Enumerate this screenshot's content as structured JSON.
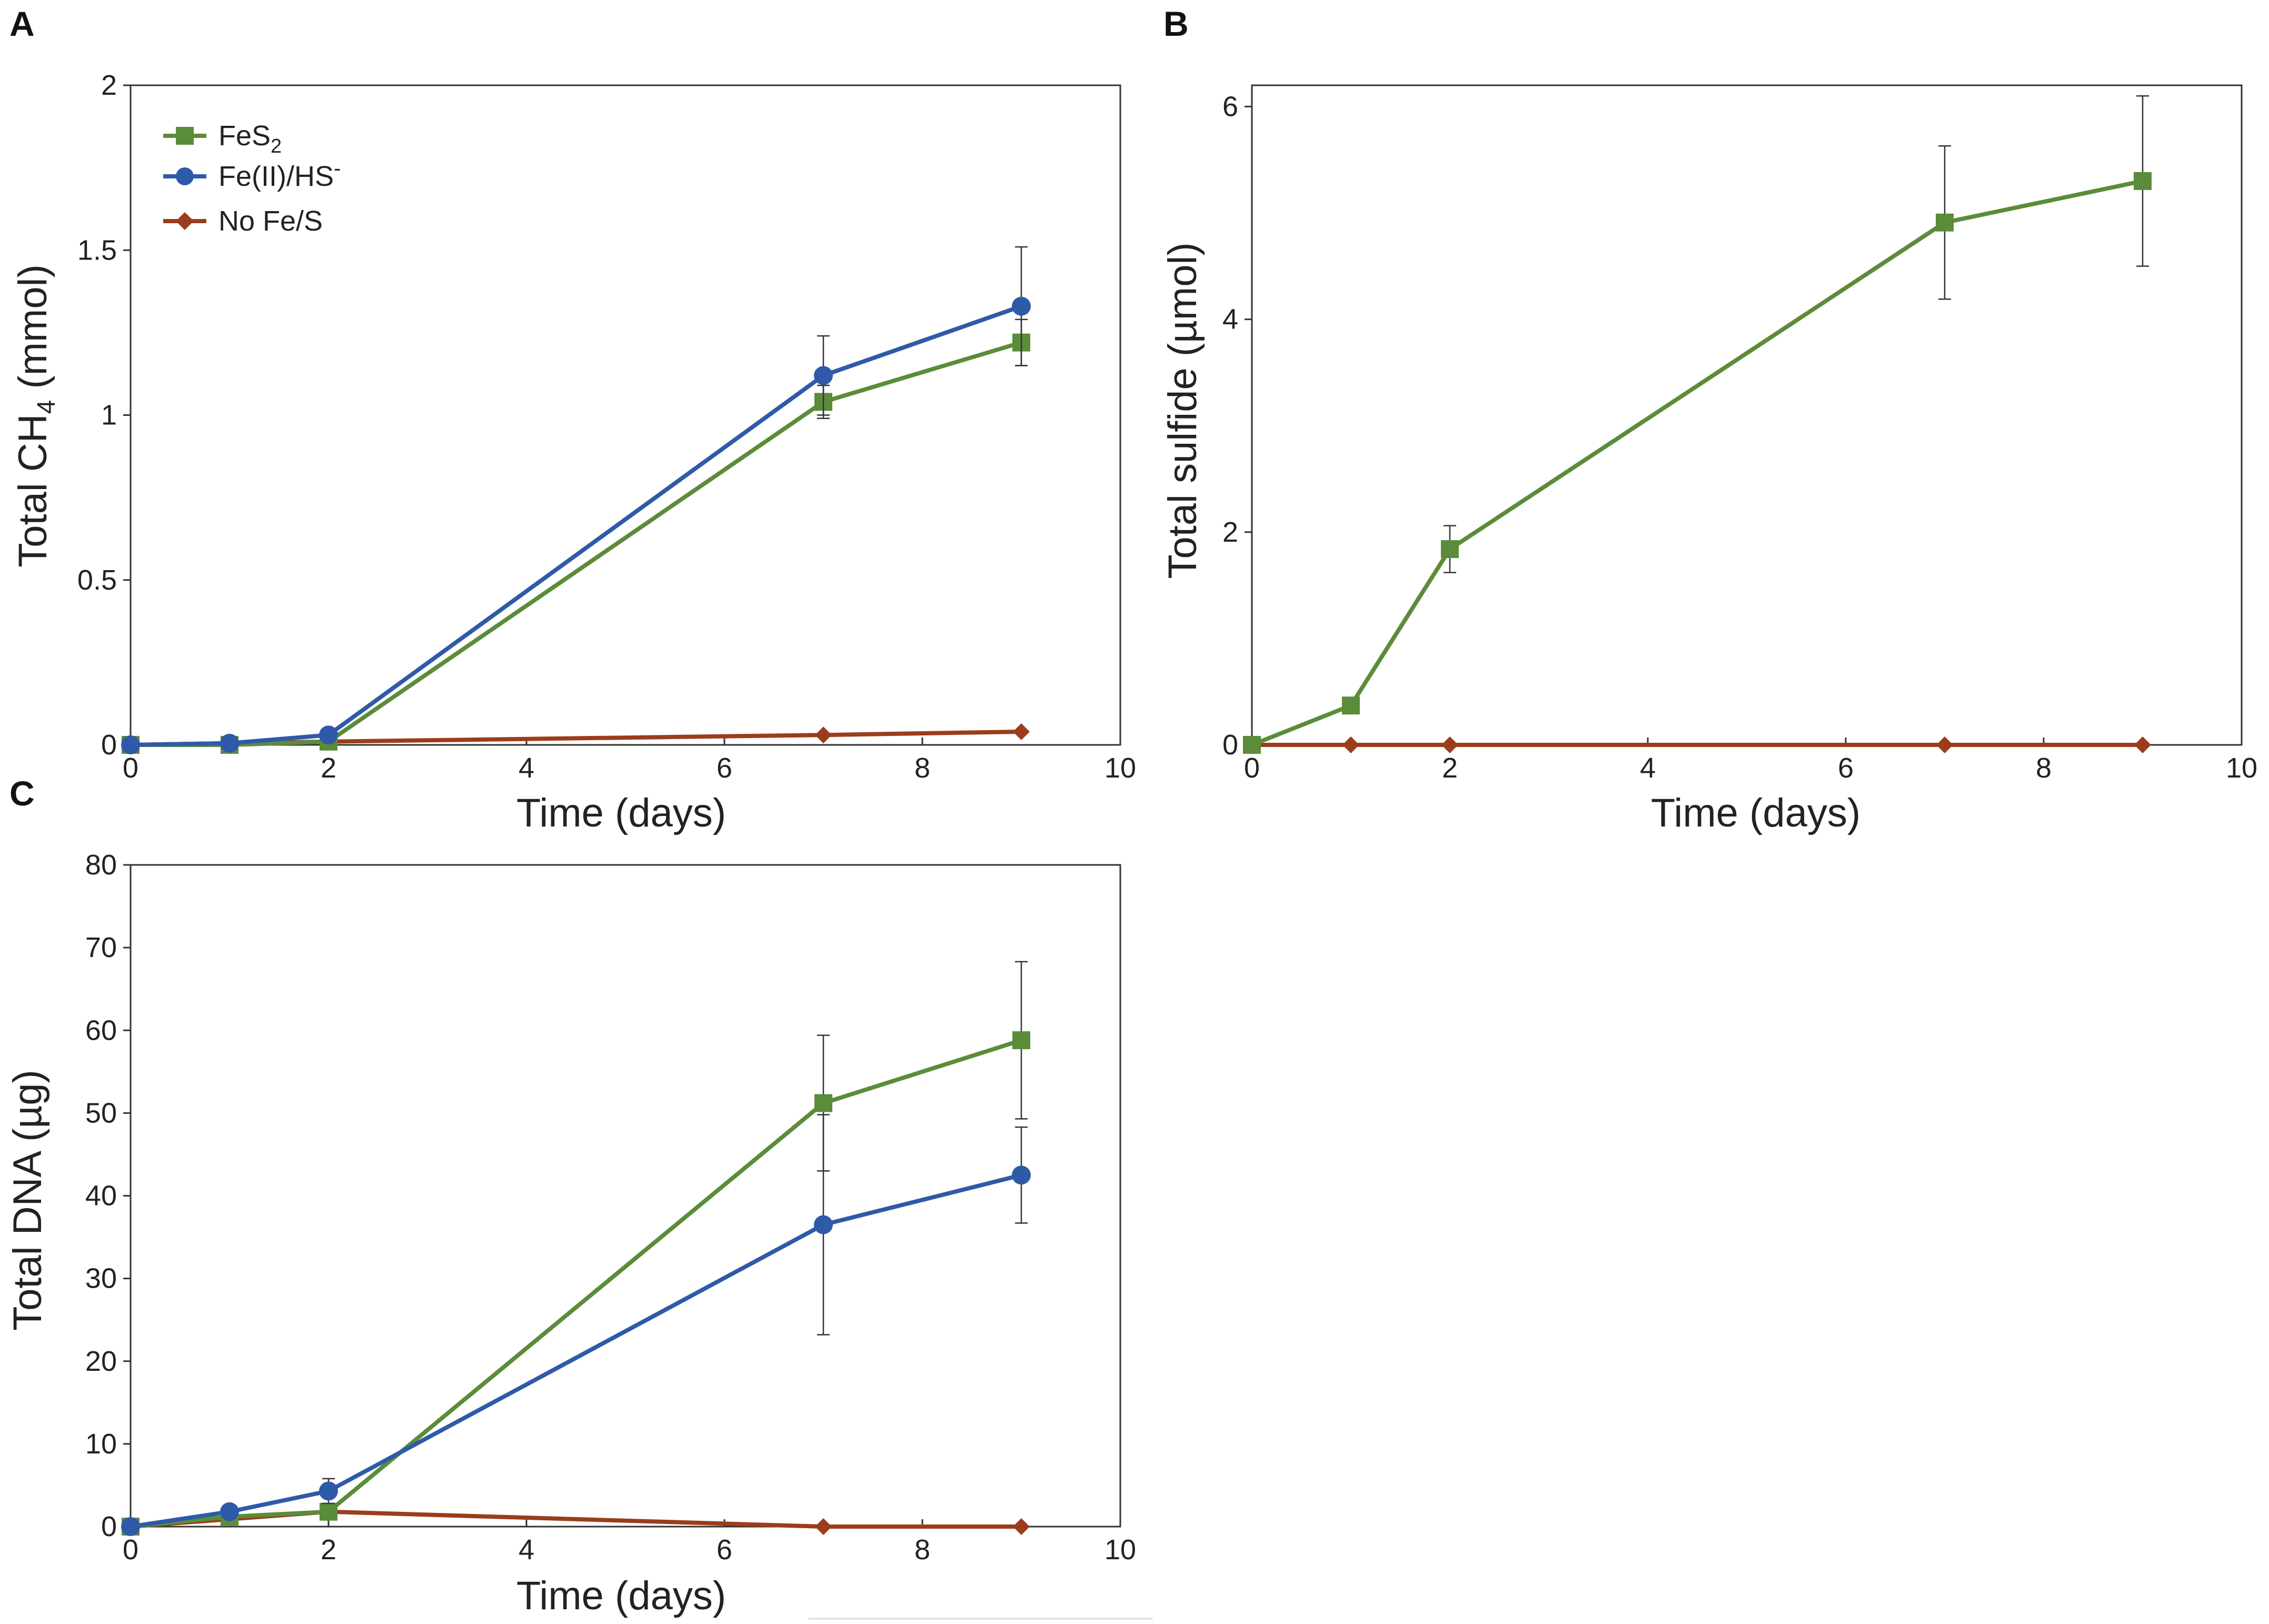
{
  "legend": {
    "items": [
      {
        "series": "FeS2",
        "label": "FeS",
        "sub": "2",
        "sup": ""
      },
      {
        "series": "FeII_HS",
        "label": "Fe(II)/HS",
        "sub": "",
        "sup": "-"
      },
      {
        "series": "NoFeS",
        "label": "No Fe/S",
        "sub": "",
        "sup": ""
      }
    ]
  },
  "series_styles": {
    "FeS2": {
      "color": "#5b8c3a",
      "marker": "square"
    },
    "FeII_HS": {
      "color": "#2f5aa8",
      "marker": "circle"
    },
    "NoFeS": {
      "color": "#9b3d1c",
      "marker": "diamond"
    }
  },
  "chart_data": [
    {
      "id": "A",
      "panel": "A",
      "type": "line",
      "xlabel": "Time (days)",
      "ylabel_parts": {
        "pre": "Total CH",
        "sub": "4",
        "post": " (mmol)"
      },
      "xlim": [
        0,
        10
      ],
      "ylim": [
        0,
        2
      ],
      "xticks": [
        "0",
        "2",
        "4",
        "6",
        "8",
        "10"
      ],
      "yticks": [
        "0",
        "0.5",
        "1",
        "1.5",
        "2"
      ],
      "ytick_values": [
        0,
        0.5,
        1,
        1.5,
        2
      ],
      "series": [
        {
          "name": "FeS2",
          "x": [
            0,
            1,
            2,
            7,
            9
          ],
          "y": [
            0,
            0,
            0.01,
            1.04,
            1.22
          ],
          "err": [
            0,
            0,
            0,
            0.05,
            0.07
          ]
        },
        {
          "name": "FeII_HS",
          "x": [
            0,
            1,
            2,
            7,
            9
          ],
          "y": [
            0,
            0.005,
            0.03,
            1.12,
            1.33
          ],
          "err": [
            0,
            0,
            0,
            0.12,
            0.18
          ]
        },
        {
          "name": "NoFeS",
          "x": [
            0,
            2,
            7,
            9
          ],
          "y": [
            0,
            0.01,
            0.03,
            0.04
          ],
          "err": [
            0,
            0,
            0,
            0
          ]
        }
      ]
    },
    {
      "id": "B",
      "panel": "B",
      "type": "line",
      "xlabel": "Time (days)",
      "ylabel_parts": {
        "pre": "Total sulfide (µmol)",
        "sub": "",
        "post": ""
      },
      "xlim": [
        0,
        10
      ],
      "ylim": [
        0,
        6.2
      ],
      "xticks": [
        "0",
        "2",
        "4",
        "6",
        "8",
        "10"
      ],
      "yticks": [
        "0",
        "2",
        "4",
        "6"
      ],
      "ytick_values": [
        0,
        2,
        4,
        6
      ],
      "series": [
        {
          "name": "FeS2",
          "x": [
            0,
            1,
            2,
            7,
            9
          ],
          "y": [
            0,
            0.37,
            1.84,
            4.91,
            5.3
          ],
          "err": [
            0,
            0,
            0.22,
            0.72,
            0.8
          ]
        },
        {
          "name": "NoFeS",
          "x": [
            0,
            1,
            2,
            7,
            9
          ],
          "y": [
            0,
            0,
            0,
            0,
            0
          ],
          "err": [
            0,
            0,
            0,
            0,
            0
          ]
        }
      ]
    },
    {
      "id": "C",
      "panel": "C",
      "type": "line",
      "xlabel": "Time (days)",
      "ylabel_parts": {
        "pre": "Total DNA (µg)",
        "sub": "",
        "post": ""
      },
      "xlim": [
        0,
        10
      ],
      "ylim": [
        0,
        80
      ],
      "xticks": [
        "0",
        "2",
        "4",
        "6",
        "8",
        "10"
      ],
      "yticks": [
        "0",
        "10",
        "20",
        "30",
        "40",
        "50",
        "60",
        "70",
        "80"
      ],
      "ytick_values": [
        0,
        10,
        20,
        30,
        40,
        50,
        60,
        70,
        80
      ],
      "series": [
        {
          "name": "FeS2",
          "x": [
            0,
            1,
            2,
            7,
            9
          ],
          "y": [
            0,
            1.2,
            1.8,
            51.2,
            58.8
          ],
          "err": [
            0,
            0,
            0,
            8.2,
            9.5
          ]
        },
        {
          "name": "FeII_HS",
          "x": [
            0,
            1,
            2,
            7,
            9
          ],
          "y": [
            0,
            1.8,
            4.3,
            36.5,
            42.5
          ],
          "err": [
            0,
            0,
            1.5,
            13.3,
            5.8
          ]
        },
        {
          "name": "NoFeS",
          "x": [
            0,
            2,
            7,
            9
          ],
          "y": [
            0,
            1.8,
            0,
            0
          ],
          "err": [
            0,
            0,
            0,
            0
          ]
        }
      ]
    }
  ]
}
